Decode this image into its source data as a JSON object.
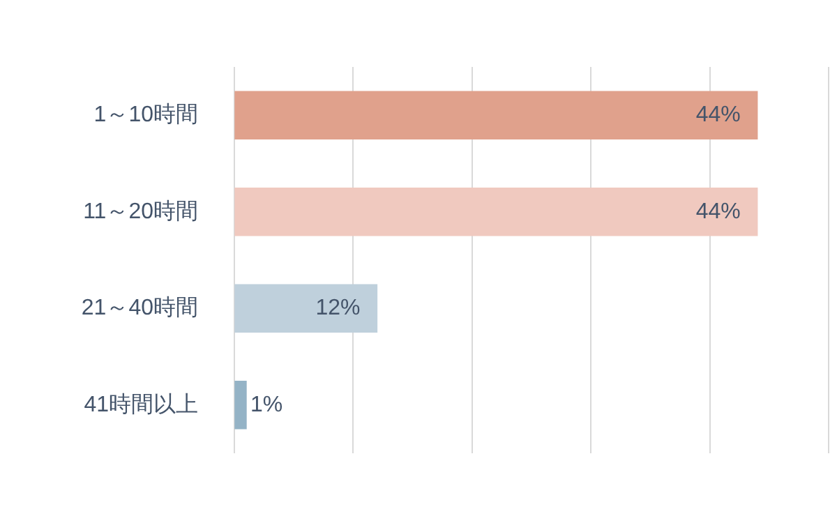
{
  "chart_data": {
    "type": "bar",
    "orientation": "horizontal",
    "categories": [
      "1～10時間",
      "11～20時間",
      "21～40時間",
      "41時間以上"
    ],
    "values": [
      44,
      44,
      12,
      1
    ],
    "colors": [
      "#e0a18c",
      "#f0c9bf",
      "#bfd0dc",
      "#94b3c6"
    ],
    "value_labels": [
      "44%",
      "44%",
      "12%",
      "1%"
    ],
    "xlim": [
      0,
      50
    ],
    "xticks": [
      {
        "value": 0,
        "label": null
      },
      {
        "value": 10,
        "label": null
      },
      {
        "value": 20,
        "label": null
      },
      {
        "value": 30,
        "label": null
      },
      {
        "value": 40,
        "label": null
      },
      {
        "value": 50,
        "label": null
      }
    ],
    "grid": "x",
    "tick_labels": "y",
    "legend": false
  }
}
